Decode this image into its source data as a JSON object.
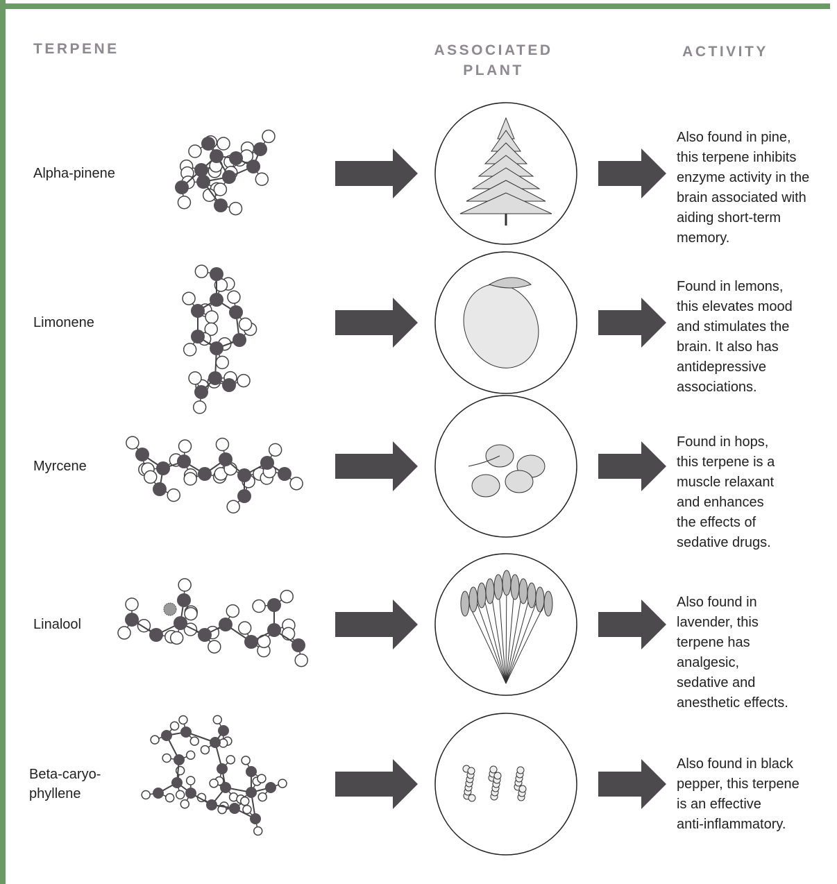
{
  "header": {
    "terpene": "TERPENE",
    "plant": [
      "ASSOCIATED",
      "PLANT"
    ],
    "activity": "ACTIVITY"
  },
  "rows": [
    {
      "terpene": [
        "Alpha-pinene"
      ],
      "activity": [
        "Also found in pine,",
        "this terpene inhibits",
        "enzyme activity in the",
        "brain associated with",
        "aiding short-term",
        "memory."
      ]
    },
    {
      "terpene": [
        "Limonene"
      ],
      "activity": [
        "Found in lemons,",
        "this elevates mood",
        "and stimulates the",
        "brain. It also has",
        "antidepressive",
        "associations."
      ]
    },
    {
      "terpene": [
        "Myrcene"
      ],
      "activity": [
        "Found in hops,",
        "this terpene is a",
        "muscle relaxant",
        "and enhances",
        "the effects of",
        "sedative drugs."
      ]
    },
    {
      "terpene": [
        "Linalool"
      ],
      "activity": [
        "Also found in",
        "lavender, this",
        "terpene has",
        "analgesic,",
        "sedative and",
        "anesthetic effects."
      ]
    },
    {
      "terpene": [
        "Beta-caryo-",
        "phyllene"
      ],
      "activity": [
        "Also found in black",
        "pepper, this terpene",
        "is an effective",
        "anti-inflammatory."
      ]
    }
  ]
}
